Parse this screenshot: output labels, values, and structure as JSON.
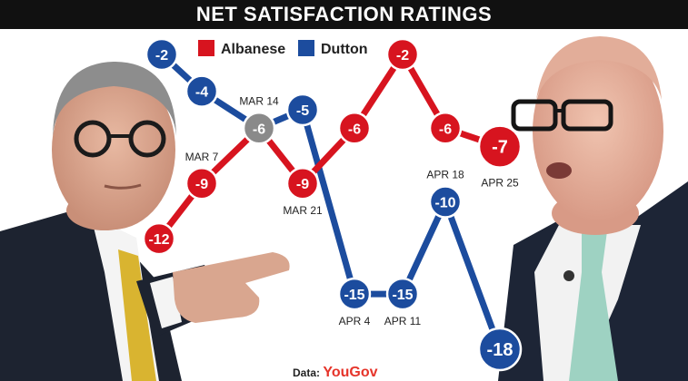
{
  "title": "NET SATISFACTION RATINGS",
  "credit": {
    "label": "Data:",
    "brand": "YouGov"
  },
  "colors": {
    "albanese": "#d7141f",
    "dutton": "#1c4c9e",
    "tie": "#8a8a8a",
    "title_bg": "#111111"
  },
  "chart_data": {
    "type": "line",
    "title": "NET SATISFACTION RATINGS",
    "xlabel": "",
    "ylabel": "",
    "ylim": [
      -18,
      -2
    ],
    "grid": false,
    "legend": "top",
    "dates": [
      "MAR 7",
      "MAR 14",
      "MAR 21",
      "APR 4",
      "APR 11",
      "APR 18",
      "APR 25"
    ],
    "series": [
      {
        "name": "Albanese",
        "color": "#d7141f",
        "points": [
          {
            "label": "",
            "value": -12
          },
          {
            "label": "MAR 7",
            "value": -9
          },
          {
            "label": "MAR 14",
            "value": -6
          },
          {
            "label": "MAR 21",
            "value": -9
          },
          {
            "label": "",
            "value": -6
          },
          {
            "label": "",
            "value": -2
          },
          {
            "label": "",
            "value": -6
          },
          {
            "label": "APR 25",
            "value": -7
          }
        ]
      },
      {
        "name": "Dutton",
        "color": "#1c4c9e",
        "points": [
          {
            "label": "",
            "value": -2
          },
          {
            "label": "",
            "value": -4
          },
          {
            "label": "MAR 14",
            "value": -6
          },
          {
            "label": "",
            "value": -5
          },
          {
            "label": "APR 4",
            "value": -15
          },
          {
            "label": "APR 11",
            "value": -15
          },
          {
            "label": "APR 18",
            "value": -10
          },
          {
            "label": "",
            "value": -18
          }
        ]
      }
    ]
  }
}
